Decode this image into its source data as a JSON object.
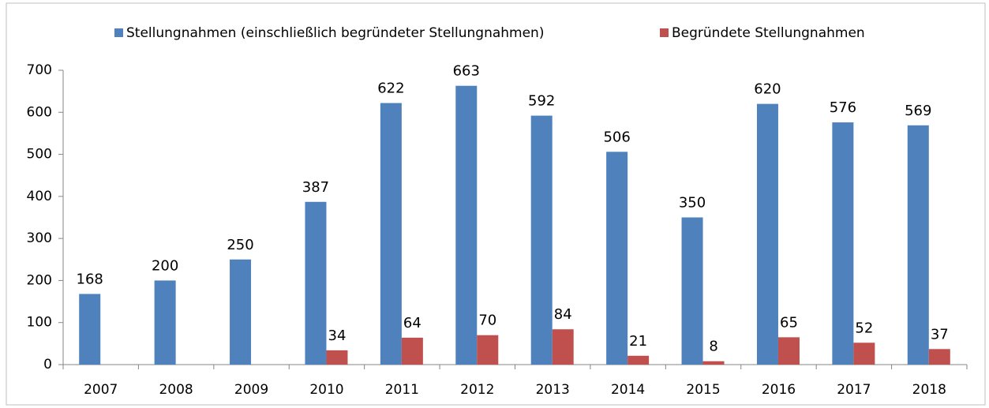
{
  "chart_data": {
    "type": "bar",
    "categories": [
      "2007",
      "2008",
      "2009",
      "2010",
      "2011",
      "2012",
      "2013",
      "2014",
      "2015",
      "2016",
      "2017",
      "2018"
    ],
    "series": [
      {
        "name": "Stellungnahmen (einschließlich begründeter Stellungnahmen)",
        "color": "#4f81bd",
        "values": [
          168,
          200,
          250,
          387,
          622,
          663,
          592,
          506,
          350,
          620,
          576,
          569
        ]
      },
      {
        "name": "Begründete Stellungnahmen",
        "color": "#c0504d",
        "values": [
          null,
          null,
          null,
          34,
          64,
          70,
          84,
          21,
          8,
          65,
          52,
          37
        ]
      }
    ],
    "ylim": [
      0,
      700
    ],
    "yticks": [
      0,
      100,
      200,
      300,
      400,
      500,
      600,
      700
    ],
    "grid": false,
    "legend": "top"
  }
}
